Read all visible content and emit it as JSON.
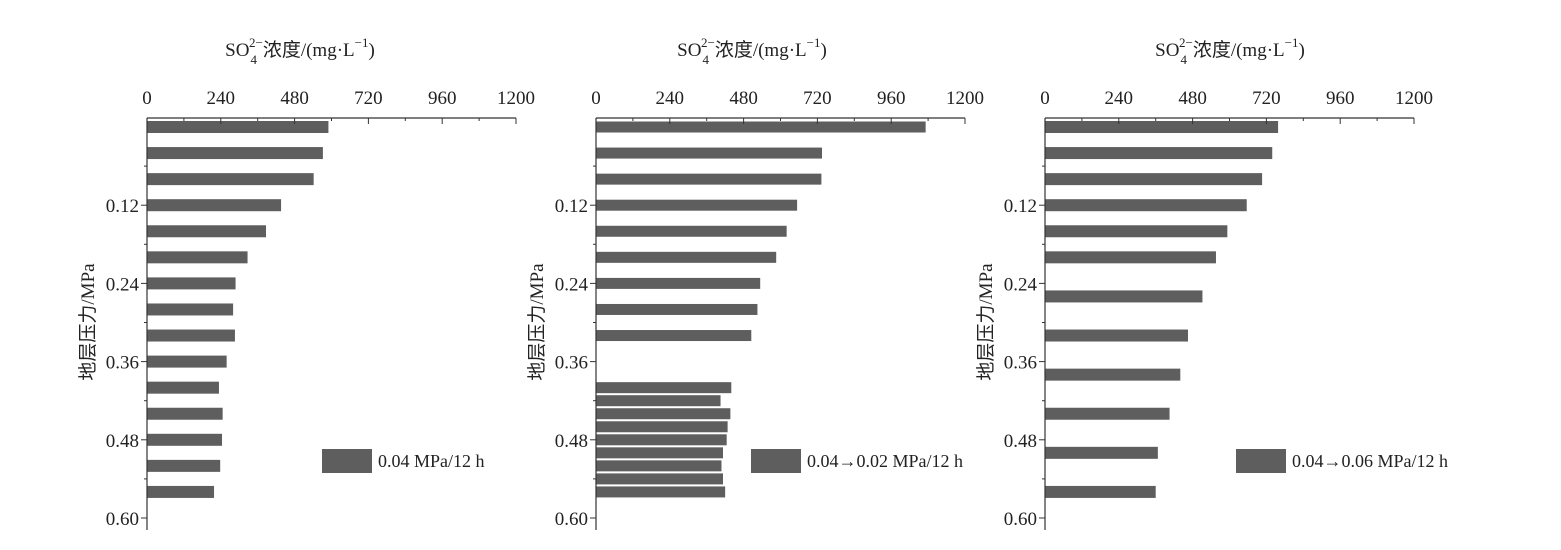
{
  "colors": {
    "bar": "#5e5e5e",
    "axis": "#333333",
    "text": "#222222"
  },
  "chart_data": [
    {
      "type": "bar",
      "orientation": "horizontal",
      "title": "",
      "xlabel": "SO₄²⁻浓度/(mg·L⁻¹)",
      "ylabel": "地层压力/MPa",
      "xlim": [
        0,
        1200
      ],
      "xticks": [
        "0",
        "240",
        "480",
        "720",
        "960",
        "1200"
      ],
      "ylim": [
        0,
        0.6
      ],
      "yticks": [
        "0.12",
        "0.24",
        "0.36",
        "0.48",
        "0.60"
      ],
      "x_axis_position": "top",
      "legend": "0.04 MPa/12 h",
      "legend_position": "bottom-right",
      "series": [
        {
          "name": "0.04 MPa/12 h",
          "points": [
            {
              "y": 0.0,
              "x": 590
            },
            {
              "y": 0.04,
              "x": 572
            },
            {
              "y": 0.08,
              "x": 542
            },
            {
              "y": 0.12,
              "x": 436
            },
            {
              "y": 0.16,
              "x": 387
            },
            {
              "y": 0.2,
              "x": 327
            },
            {
              "y": 0.24,
              "x": 288
            },
            {
              "y": 0.28,
              "x": 280
            },
            {
              "y": 0.32,
              "x": 286
            },
            {
              "y": 0.36,
              "x": 259
            },
            {
              "y": 0.4,
              "x": 234
            },
            {
              "y": 0.44,
              "x": 246
            },
            {
              "y": 0.48,
              "x": 244
            },
            {
              "y": 0.52,
              "x": 238
            },
            {
              "y": 0.56,
              "x": 218
            }
          ]
        }
      ]
    },
    {
      "type": "bar",
      "orientation": "horizontal",
      "title": "",
      "xlabel": "SO₄²⁻浓度/(mg·L⁻¹)",
      "ylabel": "地层压力/MPa",
      "xlim": [
        0,
        1200
      ],
      "xticks": [
        "0",
        "240",
        "480",
        "720",
        "960",
        "1200"
      ],
      "ylim": [
        0,
        0.6
      ],
      "yticks": [
        "0.12",
        "0.24",
        "0.36",
        "0.48",
        "0.60"
      ],
      "x_axis_position": "top",
      "legend": "0.04→0.02 MPa/12 h",
      "legend_position": "bottom-right",
      "series": [
        {
          "name": "0.04→0.02 MPa/12 h",
          "points": [
            {
              "y": 0.0,
              "x": 1072
            },
            {
              "y": 0.04,
              "x": 735
            },
            {
              "y": 0.08,
              "x": 733
            },
            {
              "y": 0.12,
              "x": 654
            },
            {
              "y": 0.16,
              "x": 620
            },
            {
              "y": 0.2,
              "x": 586
            },
            {
              "y": 0.24,
              "x": 534
            },
            {
              "y": 0.28,
              "x": 525
            },
            {
              "y": 0.32,
              "x": 505
            },
            {
              "y": 0.4,
              "x": 440
            },
            {
              "y": 0.42,
              "x": 405
            },
            {
              "y": 0.44,
              "x": 437
            },
            {
              "y": 0.46,
              "x": 428
            },
            {
              "y": 0.48,
              "x": 425
            },
            {
              "y": 0.5,
              "x": 413
            },
            {
              "y": 0.52,
              "x": 408
            },
            {
              "y": 0.54,
              "x": 413
            },
            {
              "y": 0.56,
              "x": 420
            }
          ]
        }
      ]
    },
    {
      "type": "bar",
      "orientation": "horizontal",
      "title": "",
      "xlabel": "SO₄²⁻浓度/(mg·L⁻¹)",
      "ylabel": "地层压力/MPa",
      "xlim": [
        0,
        1200
      ],
      "xticks": [
        "0",
        "240",
        "480",
        "720",
        "960",
        "1200"
      ],
      "ylim": [
        0,
        0.6
      ],
      "yticks": [
        "0.12",
        "0.24",
        "0.36",
        "0.48",
        "0.60"
      ],
      "x_axis_position": "top",
      "legend": "0.04→0.06 MPa/12 h",
      "legend_position": "bottom-right",
      "series": [
        {
          "name": "0.04→0.06 MPa/12 h",
          "points": [
            {
              "y": 0.0,
              "x": 758
            },
            {
              "y": 0.04,
              "x": 739
            },
            {
              "y": 0.08,
              "x": 706
            },
            {
              "y": 0.12,
              "x": 656
            },
            {
              "y": 0.16,
              "x": 593
            },
            {
              "y": 0.2,
              "x": 556
            },
            {
              "y": 0.26,
              "x": 512
            },
            {
              "y": 0.32,
              "x": 465
            },
            {
              "y": 0.38,
              "x": 440
            },
            {
              "y": 0.44,
              "x": 405
            },
            {
              "y": 0.5,
              "x": 367
            },
            {
              "y": 0.56,
              "x": 360
            }
          ]
        }
      ]
    }
  ]
}
